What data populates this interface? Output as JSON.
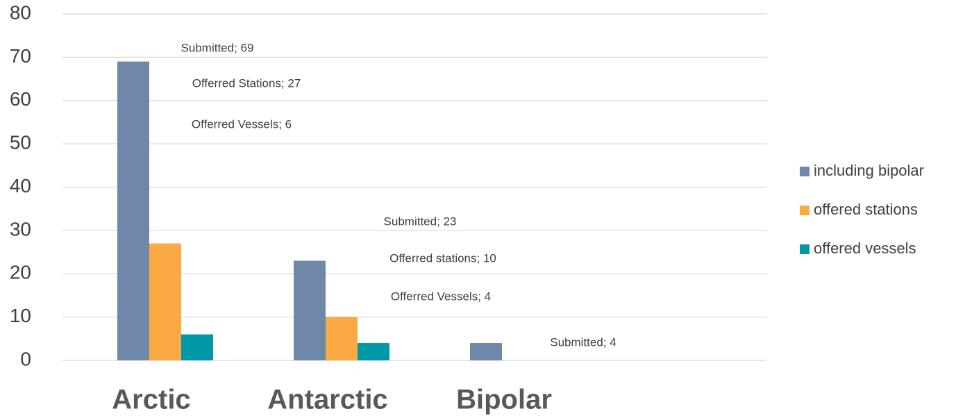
{
  "chart_data": {
    "type": "bar",
    "categories": [
      "Arctic",
      "Antarctic",
      "Bipolar"
    ],
    "series": [
      {
        "name": "including bipolar",
        "color": "#6f87a8",
        "values": [
          69,
          23,
          4
        ],
        "value_labels": [
          "Submitted; 69",
          "Submitted; 23",
          "Submitted; 4"
        ]
      },
      {
        "name": "offered stations",
        "color": "#fba943",
        "values": [
          27,
          10,
          null
        ],
        "value_labels": [
          "Offerred Stations; 27",
          "Offerred stations; 10",
          null
        ]
      },
      {
        "name": "offered vessels",
        "color": "#0097a7",
        "values": [
          6,
          4,
          null
        ],
        "value_labels": [
          "Offerred Vessels; 6",
          "Offerred Vessels; 4",
          null
        ]
      }
    ],
    "ylim": [
      0,
      80
    ],
    "yticks": [
      0,
      10,
      20,
      30,
      40,
      50,
      60,
      70,
      80
    ],
    "grid": true,
    "legend": "right"
  }
}
